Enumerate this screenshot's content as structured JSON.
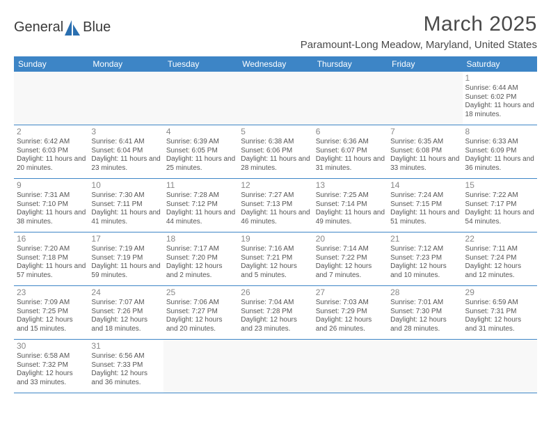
{
  "logo": {
    "text1": "General",
    "text2": "Blue"
  },
  "title": "March 2025",
  "location": "Paramount-Long Meadow, Maryland, United States",
  "colors": {
    "header_bg": "#3d85c6",
    "header_text": "#ffffff",
    "border": "#3d85c6",
    "text": "#555555",
    "daynum": "#888888",
    "logo_blue": "#2a6fb0"
  },
  "day_names": [
    "Sunday",
    "Monday",
    "Tuesday",
    "Wednesday",
    "Thursday",
    "Friday",
    "Saturday"
  ],
  "weeks": [
    [
      null,
      null,
      null,
      null,
      null,
      null,
      {
        "d": "1",
        "sr": "6:44 AM",
        "ss": "6:02 PM",
        "dl": "11 hours and 18 minutes."
      }
    ],
    [
      {
        "d": "2",
        "sr": "6:42 AM",
        "ss": "6:03 PM",
        "dl": "11 hours and 20 minutes."
      },
      {
        "d": "3",
        "sr": "6:41 AM",
        "ss": "6:04 PM",
        "dl": "11 hours and 23 minutes."
      },
      {
        "d": "4",
        "sr": "6:39 AM",
        "ss": "6:05 PM",
        "dl": "11 hours and 25 minutes."
      },
      {
        "d": "5",
        "sr": "6:38 AM",
        "ss": "6:06 PM",
        "dl": "11 hours and 28 minutes."
      },
      {
        "d": "6",
        "sr": "6:36 AM",
        "ss": "6:07 PM",
        "dl": "11 hours and 31 minutes."
      },
      {
        "d": "7",
        "sr": "6:35 AM",
        "ss": "6:08 PM",
        "dl": "11 hours and 33 minutes."
      },
      {
        "d": "8",
        "sr": "6:33 AM",
        "ss": "6:09 PM",
        "dl": "11 hours and 36 minutes."
      }
    ],
    [
      {
        "d": "9",
        "sr": "7:31 AM",
        "ss": "7:10 PM",
        "dl": "11 hours and 38 minutes."
      },
      {
        "d": "10",
        "sr": "7:30 AM",
        "ss": "7:11 PM",
        "dl": "11 hours and 41 minutes."
      },
      {
        "d": "11",
        "sr": "7:28 AM",
        "ss": "7:12 PM",
        "dl": "11 hours and 44 minutes."
      },
      {
        "d": "12",
        "sr": "7:27 AM",
        "ss": "7:13 PM",
        "dl": "11 hours and 46 minutes."
      },
      {
        "d": "13",
        "sr": "7:25 AM",
        "ss": "7:14 PM",
        "dl": "11 hours and 49 minutes."
      },
      {
        "d": "14",
        "sr": "7:24 AM",
        "ss": "7:15 PM",
        "dl": "11 hours and 51 minutes."
      },
      {
        "d": "15",
        "sr": "7:22 AM",
        "ss": "7:17 PM",
        "dl": "11 hours and 54 minutes."
      }
    ],
    [
      {
        "d": "16",
        "sr": "7:20 AM",
        "ss": "7:18 PM",
        "dl": "11 hours and 57 minutes."
      },
      {
        "d": "17",
        "sr": "7:19 AM",
        "ss": "7:19 PM",
        "dl": "11 hours and 59 minutes."
      },
      {
        "d": "18",
        "sr": "7:17 AM",
        "ss": "7:20 PM",
        "dl": "12 hours and 2 minutes."
      },
      {
        "d": "19",
        "sr": "7:16 AM",
        "ss": "7:21 PM",
        "dl": "12 hours and 5 minutes."
      },
      {
        "d": "20",
        "sr": "7:14 AM",
        "ss": "7:22 PM",
        "dl": "12 hours and 7 minutes."
      },
      {
        "d": "21",
        "sr": "7:12 AM",
        "ss": "7:23 PM",
        "dl": "12 hours and 10 minutes."
      },
      {
        "d": "22",
        "sr": "7:11 AM",
        "ss": "7:24 PM",
        "dl": "12 hours and 12 minutes."
      }
    ],
    [
      {
        "d": "23",
        "sr": "7:09 AM",
        "ss": "7:25 PM",
        "dl": "12 hours and 15 minutes."
      },
      {
        "d": "24",
        "sr": "7:07 AM",
        "ss": "7:26 PM",
        "dl": "12 hours and 18 minutes."
      },
      {
        "d": "25",
        "sr": "7:06 AM",
        "ss": "7:27 PM",
        "dl": "12 hours and 20 minutes."
      },
      {
        "d": "26",
        "sr": "7:04 AM",
        "ss": "7:28 PM",
        "dl": "12 hours and 23 minutes."
      },
      {
        "d": "27",
        "sr": "7:03 AM",
        "ss": "7:29 PM",
        "dl": "12 hours and 26 minutes."
      },
      {
        "d": "28",
        "sr": "7:01 AM",
        "ss": "7:30 PM",
        "dl": "12 hours and 28 minutes."
      },
      {
        "d": "29",
        "sr": "6:59 AM",
        "ss": "7:31 PM",
        "dl": "12 hours and 31 minutes."
      }
    ],
    [
      {
        "d": "30",
        "sr": "6:58 AM",
        "ss": "7:32 PM",
        "dl": "12 hours and 33 minutes."
      },
      {
        "d": "31",
        "sr": "6:56 AM",
        "ss": "7:33 PM",
        "dl": "12 hours and 36 minutes."
      },
      null,
      null,
      null,
      null,
      null
    ]
  ],
  "labels": {
    "sunrise": "Sunrise:",
    "sunset": "Sunset:",
    "daylight": "Daylight:"
  }
}
